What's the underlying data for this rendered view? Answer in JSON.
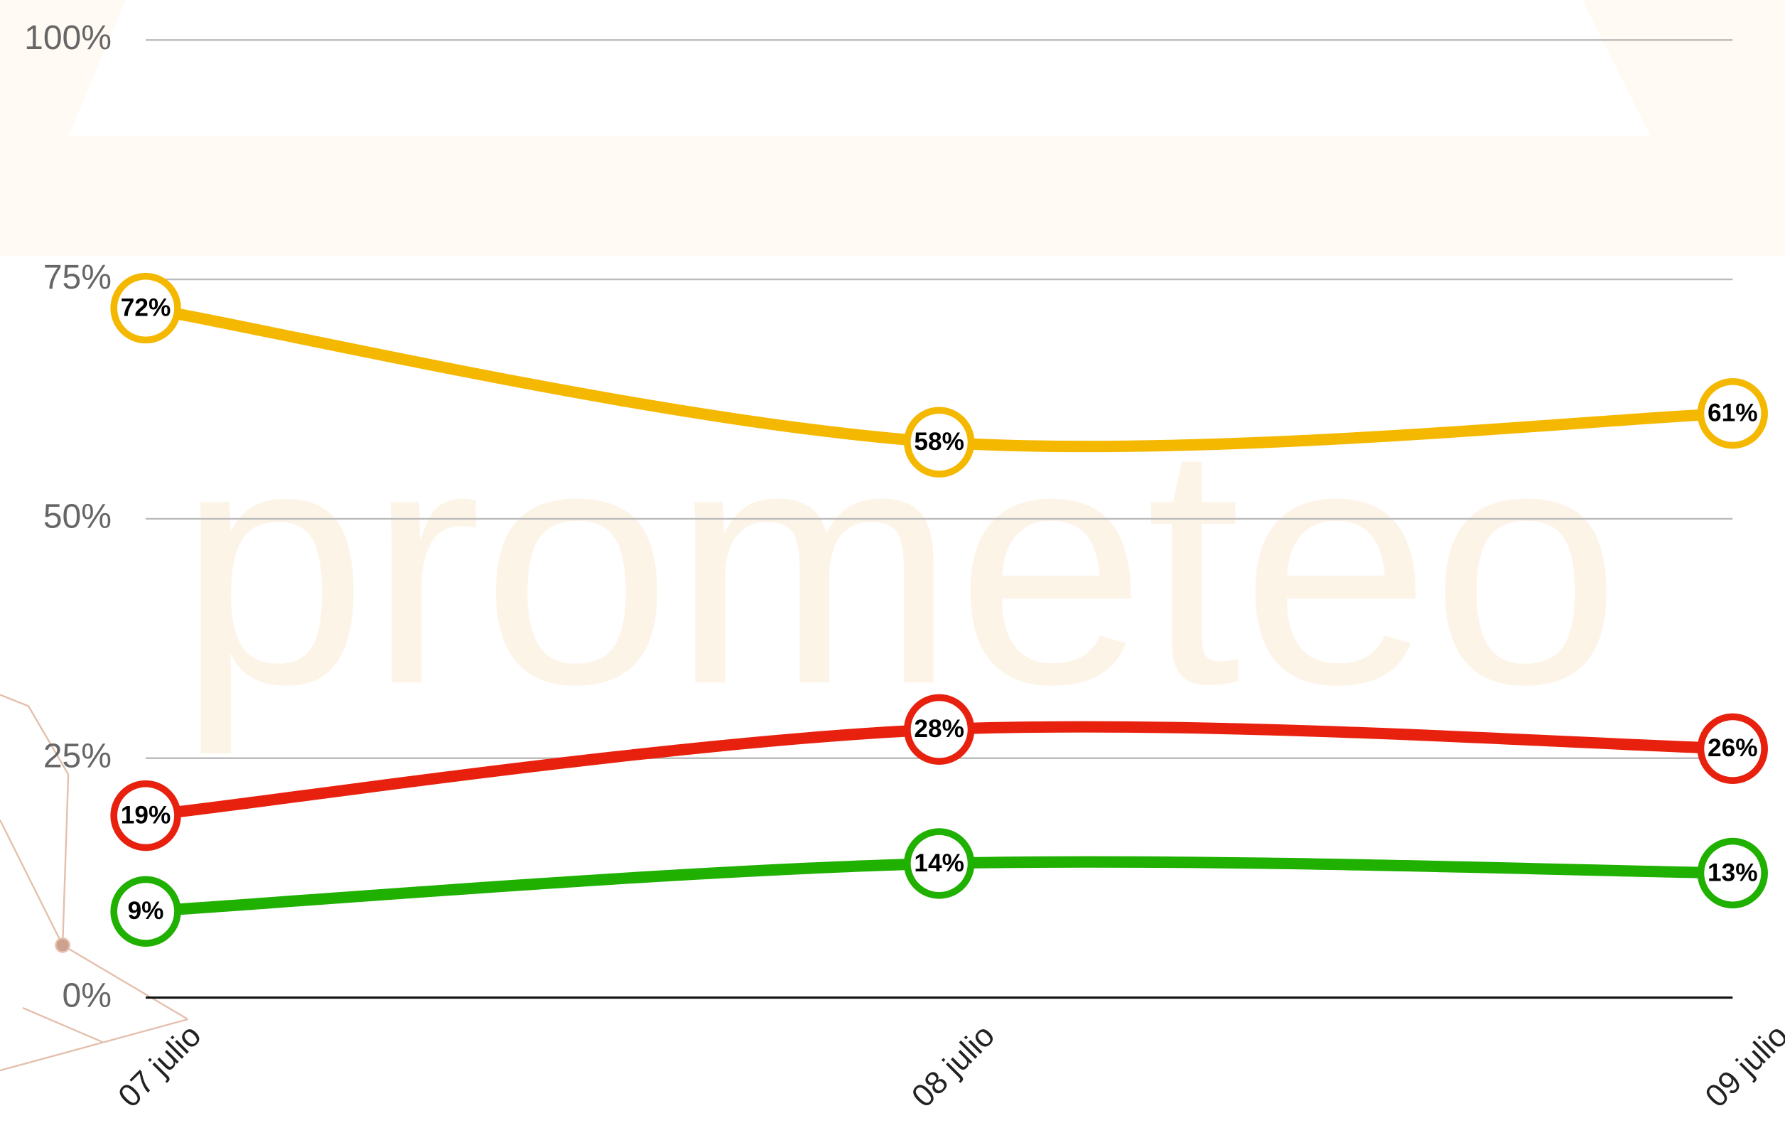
{
  "chart_data": {
    "type": "line",
    "watermark": "prometeo",
    "categories": [
      "07 julio",
      "08 julio",
      "09 julio"
    ],
    "series": [
      {
        "color": "#f5b800",
        "values": [
          72,
          58,
          61
        ],
        "value_labels": [
          "72%",
          "58%",
          "61%"
        ]
      },
      {
        "color": "#e8210f",
        "values": [
          19,
          28,
          26
        ],
        "value_labels": [
          "19%",
          "28%",
          "26%"
        ]
      },
      {
        "color": "#1fb000",
        "values": [
          9,
          14,
          13
        ],
        "value_labels": [
          "9%",
          "14%",
          "13%"
        ]
      }
    ],
    "ylim": [
      0,
      100
    ],
    "yticks": [
      {
        "value": 0,
        "label": "0%"
      },
      {
        "value": 25,
        "label": "25%"
      },
      {
        "value": 50,
        "label": "50%"
      },
      {
        "value": 75,
        "label": "75%"
      },
      {
        "value": 100,
        "label": "100%"
      }
    ],
    "grid": true
  }
}
